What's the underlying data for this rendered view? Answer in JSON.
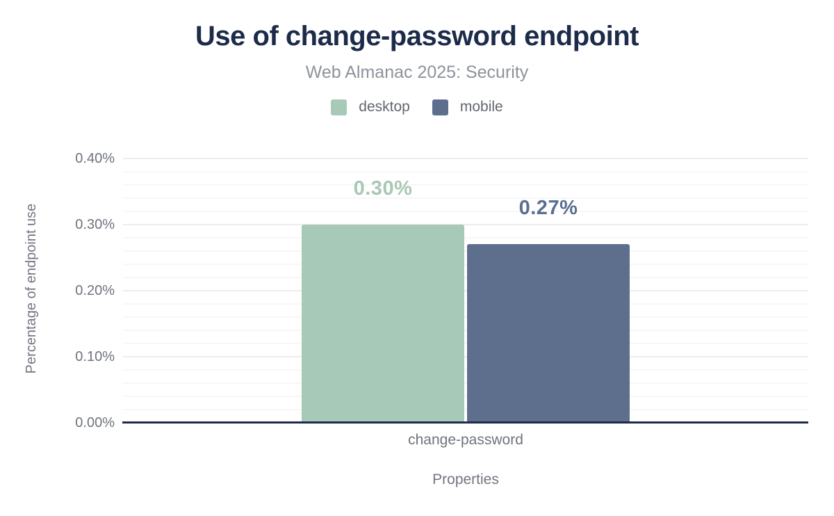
{
  "header": {
    "title": "Use of change-password endpoint",
    "subtitle": "Web Almanac 2025: Security"
  },
  "legend": {
    "items": [
      {
        "label": "desktop",
        "color": "#a7c9b8"
      },
      {
        "label": "mobile",
        "color": "#5e6f8e"
      }
    ]
  },
  "chart_data": {
    "type": "bar",
    "title": "Use of change-password endpoint",
    "subtitle": "Web Almanac 2025: Security",
    "categories": [
      "change-password"
    ],
    "series": [
      {
        "name": "desktop",
        "values": [
          0.3
        ],
        "labels": [
          "0.30%"
        ],
        "color": "#a7c9b8",
        "label_color": "#a8c8b4"
      },
      {
        "name": "mobile",
        "values": [
          0.27
        ],
        "labels": [
          "0.27%"
        ],
        "color": "#5e6f8e",
        "label_color": "#5a6e91"
      }
    ],
    "xlabel": "Properties",
    "ylabel": "Percentage of endpoint use",
    "ylim": [
      0,
      0.4
    ],
    "yticks": [
      {
        "value": 0.0,
        "label": "0.00%"
      },
      {
        "value": 0.1,
        "label": "0.10%"
      },
      {
        "value": 0.2,
        "label": "0.20%"
      },
      {
        "value": 0.3,
        "label": "0.30%"
      },
      {
        "value": 0.4,
        "label": "0.40%"
      }
    ],
    "minor_tick_step": 0.02,
    "major_tick_step": 0.1,
    "grid": "on",
    "legend_position": "top",
    "colors": {
      "axis_line": "#1c2b4a",
      "major_grid": "#ececec",
      "minor_grid": "#f7f7f7",
      "tick_text": "#6e737d",
      "axis_title_text": "#71767f",
      "title_text": "#1c2b4a",
      "subtitle_text": "#8d939b"
    }
  }
}
